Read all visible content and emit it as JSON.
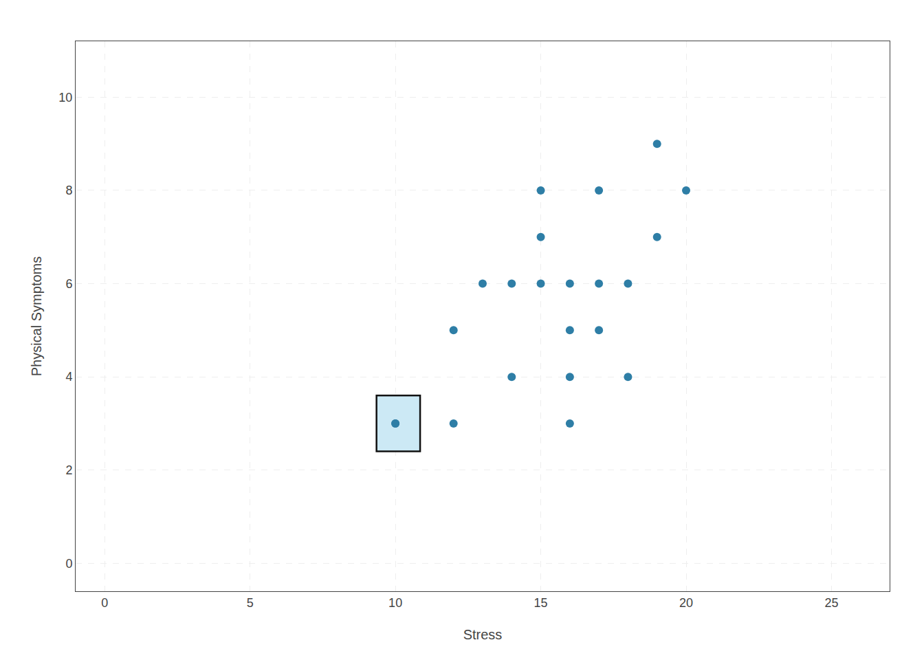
{
  "chart_data": {
    "type": "scatter",
    "x": [
      10,
      12,
      12,
      13,
      14,
      14,
      15,
      15,
      15,
      16,
      16,
      16,
      16,
      17,
      17,
      17,
      18,
      18,
      19,
      19,
      20
    ],
    "values": [
      3,
      3,
      5,
      6,
      4,
      6,
      6,
      8,
      7,
      4,
      5,
      6,
      3,
      5,
      6,
      8,
      4,
      6,
      7,
      9,
      8
    ],
    "color": "#2E7EA6",
    "highlighted_point": [
      10,
      3
    ],
    "highlight_box": {
      "x": 9.35,
      "y": 2.4,
      "width": 1.5,
      "height": 1.2,
      "color": "#cce9f5",
      "edgecolor": "#111111"
    },
    "xlabel": "Stress",
    "ylabel": "Physical Symptoms",
    "xlim": [
      -1,
      27
    ],
    "ylim": [
      -0.6,
      11.2
    ],
    "xticks": [
      0,
      5,
      10,
      15,
      20,
      25
    ],
    "yticks": [
      0,
      2,
      4,
      6,
      8,
      10
    ],
    "grid": true
  }
}
